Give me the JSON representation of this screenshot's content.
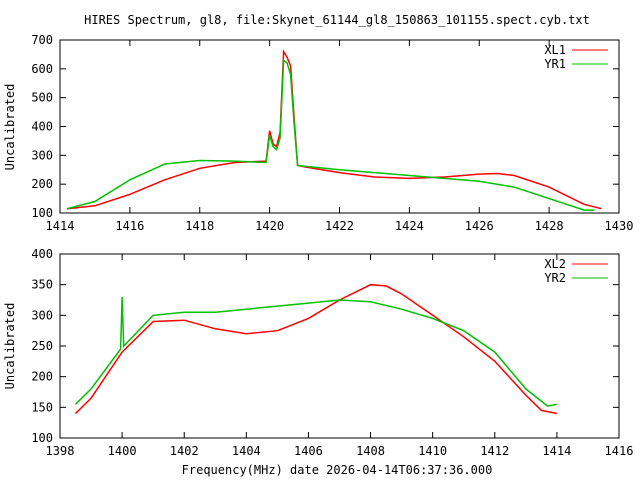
{
  "chart_data": [
    {
      "type": "line",
      "title": "HIRES Spectrum, gl8, file:Skynet_61144_gl8_150863_101155.spect.cyb.txt",
      "xlabel": "",
      "ylabel": "Uncalibrated",
      "xlim": [
        1414,
        1430
      ],
      "ylim": [
        100,
        700
      ],
      "xticks": [
        1414,
        1416,
        1418,
        1420,
        1422,
        1424,
        1426,
        1428,
        1430
      ],
      "yticks": [
        100,
        200,
        300,
        400,
        500,
        600,
        700
      ],
      "legend": "top-right",
      "series": [
        {
          "name": "XL1",
          "color": "#ff0000",
          "x": [
            1414.2,
            1415,
            1416,
            1417,
            1418,
            1419,
            1419.9,
            1420.0,
            1420.1,
            1420.2,
            1420.3,
            1420.4,
            1420.5,
            1420.6,
            1420.7,
            1420.8,
            1421,
            1422,
            1423,
            1424,
            1425,
            1426,
            1426.5,
            1427,
            1428,
            1429,
            1429.5
          ],
          "y": [
            115,
            125,
            165,
            215,
            255,
            275,
            280,
            385,
            340,
            330,
            380,
            660,
            640,
            610,
            430,
            265,
            260,
            240,
            225,
            220,
            225,
            235,
            237,
            230,
            190,
            130,
            115
          ]
        },
        {
          "name": "YR1",
          "color": "#00c000",
          "x": [
            1414.2,
            1415,
            1416,
            1417,
            1418,
            1419,
            1419.9,
            1420.0,
            1420.1,
            1420.2,
            1420.3,
            1420.4,
            1420.5,
            1420.6,
            1420.7,
            1420.8,
            1421,
            1422,
            1423,
            1424,
            1425,
            1426,
            1427,
            1428,
            1429,
            1429.3
          ],
          "y": [
            115,
            140,
            215,
            270,
            282,
            280,
            275,
            370,
            330,
            320,
            360,
            630,
            620,
            580,
            410,
            265,
            262,
            250,
            240,
            230,
            220,
            210,
            190,
            150,
            110,
            110
          ]
        }
      ]
    },
    {
      "type": "line",
      "title": "",
      "xlabel": "Frequency(MHz) date 2026-04-14T06:37:36.000",
      "ylabel": "Uncalibrated",
      "xlim": [
        1398,
        1416
      ],
      "ylim": [
        100,
        400
      ],
      "xticks": [
        1398,
        1400,
        1402,
        1404,
        1406,
        1408,
        1410,
        1412,
        1414,
        1416
      ],
      "yticks": [
        100,
        150,
        200,
        250,
        300,
        350,
        400
      ],
      "legend": "top-right",
      "series": [
        {
          "name": "XL2",
          "color": "#ff0000",
          "x": [
            1398.5,
            1399,
            1400,
            1401,
            1402,
            1403,
            1404,
            1405,
            1406,
            1407,
            1408,
            1408.5,
            1409,
            1410,
            1411,
            1412,
            1413,
            1413.5,
            1414
          ],
          "y": [
            140,
            165,
            240,
            290,
            292,
            278,
            270,
            275,
            295,
            325,
            350,
            348,
            335,
            300,
            265,
            225,
            170,
            145,
            140
          ]
        },
        {
          "name": "YR2",
          "color": "#00c000",
          "x": [
            1398.5,
            1399,
            1399.95,
            1400,
            1400.05,
            1401,
            1402,
            1403,
            1404,
            1405,
            1406,
            1407,
            1408,
            1409,
            1410,
            1411,
            1412,
            1413,
            1413.7,
            1414
          ],
          "y": [
            155,
            180,
            245,
            330,
            250,
            300,
            305,
            305,
            310,
            315,
            320,
            325,
            322,
            310,
            295,
            275,
            240,
            180,
            152,
            155
          ]
        }
      ]
    }
  ]
}
